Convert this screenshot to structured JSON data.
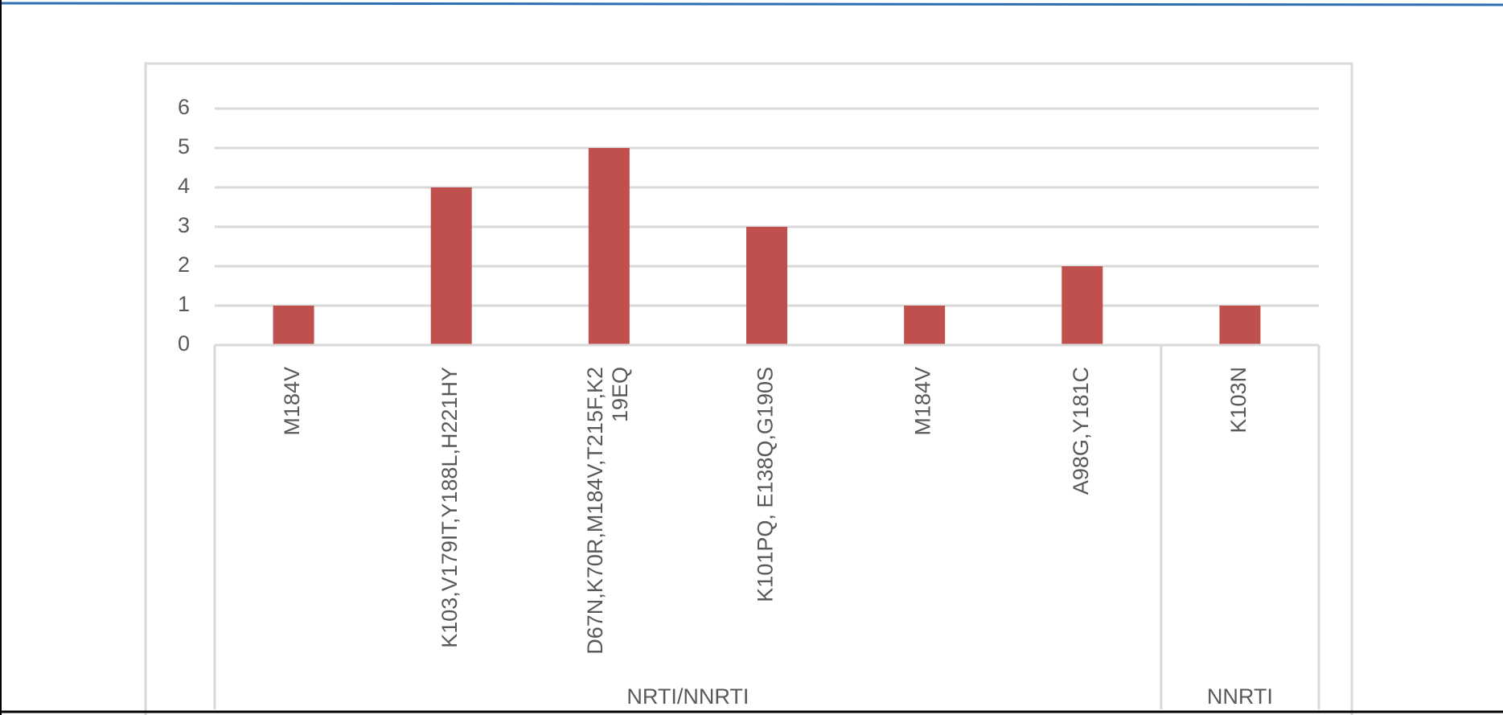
{
  "chart_data": {
    "type": "bar",
    "categories": [
      "M184V",
      "K103,V179IT,Y188L,H221HY",
      "D67N,K70R,M184V,T215F,K219EQ",
      "K101PQ, E138Q,G190S",
      "M184V",
      "A98G,Y181C",
      "K103N"
    ],
    "groups": [
      "NRTI/NNRTI",
      "NRTI/NNRTI",
      "NRTI/NNRTI",
      "NRTI/NNRTI",
      "NRTI/NNRTI",
      "NRTI/NNRTI",
      "NNRTI"
    ],
    "values": [
      1,
      4,
      5,
      3,
      1,
      2,
      1
    ],
    "color": "#c0504d",
    "ylim": [
      0,
      6
    ],
    "yticks": [
      0,
      1,
      2,
      3,
      4,
      5,
      6
    ],
    "grid": true
  }
}
